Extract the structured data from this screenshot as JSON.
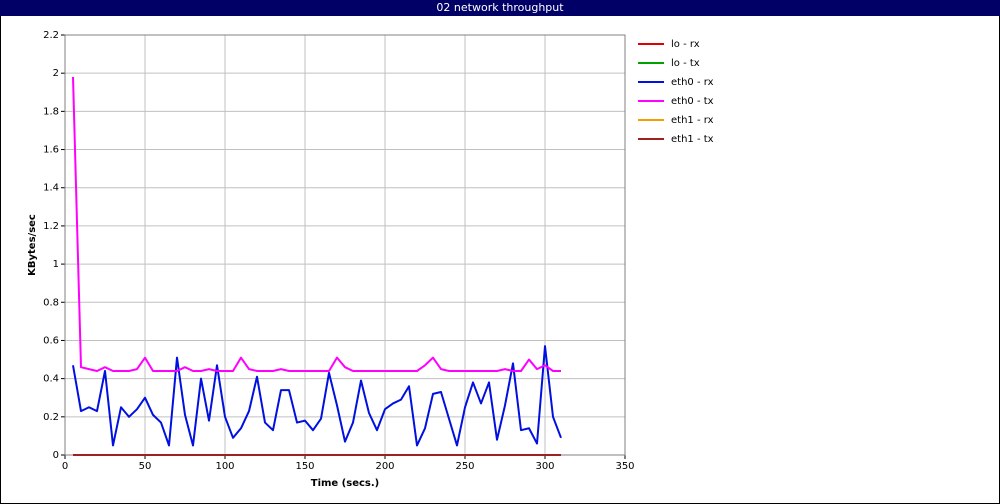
{
  "chart_data": {
    "type": "line",
    "title": "02 network throughput",
    "x_label": "Time (secs.)",
    "y_label": "KBytes/sec",
    "x": [
      5,
      10,
      15,
      20,
      25,
      30,
      35,
      40,
      45,
      50,
      55,
      60,
      65,
      70,
      75,
      80,
      85,
      90,
      95,
      100,
      105,
      110,
      115,
      120,
      125,
      130,
      135,
      140,
      145,
      150,
      155,
      160,
      165,
      170,
      175,
      180,
      185,
      190,
      195,
      200,
      205,
      210,
      215,
      220,
      225,
      230,
      235,
      240,
      245,
      250,
      255,
      260,
      265,
      270,
      275,
      280,
      285,
      290,
      295,
      300,
      305,
      310
    ],
    "series": [
      {
        "name": "lo - rx",
        "color": "#e00000",
        "values": [
          0,
          0,
          0,
          0,
          0,
          0,
          0,
          0,
          0,
          0,
          0,
          0,
          0,
          0,
          0,
          0,
          0,
          0,
          0,
          0,
          0,
          0,
          0,
          0,
          0,
          0,
          0,
          0,
          0,
          0,
          0,
          0,
          0,
          0,
          0,
          0,
          0,
          0,
          0,
          0,
          0,
          0,
          0,
          0,
          0,
          0,
          0,
          0,
          0,
          0,
          0,
          0,
          0,
          0,
          0,
          0,
          0,
          0,
          0,
          0,
          0,
          0
        ]
      },
      {
        "name": "lo - tx",
        "color": "#00a000",
        "values": [
          0,
          0,
          0,
          0,
          0,
          0,
          0,
          0,
          0,
          0,
          0,
          0,
          0,
          0,
          0,
          0,
          0,
          0,
          0,
          0,
          0,
          0,
          0,
          0,
          0,
          0,
          0,
          0,
          0,
          0,
          0,
          0,
          0,
          0,
          0,
          0,
          0,
          0,
          0,
          0,
          0,
          0,
          0,
          0,
          0,
          0,
          0,
          0,
          0,
          0,
          0,
          0,
          0,
          0,
          0,
          0,
          0,
          0,
          0,
          0,
          0,
          0
        ]
      },
      {
        "name": "eth0 - rx",
        "color": "#0010e0",
        "values": [
          0.47,
          0.23,
          0.25,
          0.23,
          0.44,
          0.05,
          0.25,
          0.2,
          0.24,
          0.3,
          0.21,
          0.17,
          0.05,
          0.51,
          0.21,
          0.05,
          0.4,
          0.18,
          0.47,
          0.2,
          0.09,
          0.14,
          0.23,
          0.41,
          0.17,
          0.13,
          0.34,
          0.34,
          0.17,
          0.18,
          0.13,
          0.19,
          0.43,
          0.26,
          0.07,
          0.17,
          0.39,
          0.22,
          0.13,
          0.24,
          0.27,
          0.29,
          0.36,
          0.05,
          0.14,
          0.32,
          0.33,
          0.19,
          0.05,
          0.25,
          0.38,
          0.27,
          0.38,
          0.08,
          0.26,
          0.48,
          0.13,
          0.14,
          0.06,
          0.57,
          0.2,
          0.09
        ]
      },
      {
        "name": "eth0 - tx",
        "color": "#ff00ff",
        "values": [
          1.98,
          0.46,
          0.45,
          0.44,
          0.46,
          0.44,
          0.44,
          0.44,
          0.45,
          0.51,
          0.44,
          0.44,
          0.44,
          0.44,
          0.46,
          0.44,
          0.44,
          0.45,
          0.44,
          0.44,
          0.44,
          0.51,
          0.45,
          0.44,
          0.44,
          0.44,
          0.45,
          0.44,
          0.44,
          0.44,
          0.44,
          0.44,
          0.44,
          0.51,
          0.46,
          0.44,
          0.44,
          0.44,
          0.44,
          0.44,
          0.44,
          0.44,
          0.44,
          0.44,
          0.47,
          0.51,
          0.45,
          0.44,
          0.44,
          0.44,
          0.44,
          0.44,
          0.44,
          0.44,
          0.45,
          0.44,
          0.44,
          0.5,
          0.45,
          0.47,
          0.44,
          0.44
        ]
      },
      {
        "name": "eth1 - rx",
        "color": "#f0a000",
        "values": [
          0,
          0,
          0,
          0,
          0,
          0,
          0,
          0,
          0,
          0,
          0,
          0,
          0,
          0,
          0,
          0,
          0,
          0,
          0,
          0,
          0,
          0,
          0,
          0,
          0,
          0,
          0,
          0,
          0,
          0,
          0,
          0,
          0,
          0,
          0,
          0,
          0,
          0,
          0,
          0,
          0,
          0,
          0,
          0,
          0,
          0,
          0,
          0,
          0,
          0,
          0,
          0,
          0,
          0,
          0,
          0,
          0,
          0,
          0,
          0,
          0,
          0
        ]
      },
      {
        "name": "eth1 - tx",
        "color": "#a02020",
        "values": [
          0,
          0,
          0,
          0,
          0,
          0,
          0,
          0,
          0,
          0,
          0,
          0,
          0,
          0,
          0,
          0,
          0,
          0,
          0,
          0,
          0,
          0,
          0,
          0,
          0,
          0,
          0,
          0,
          0,
          0,
          0,
          0,
          0,
          0,
          0,
          0,
          0,
          0,
          0,
          0,
          0,
          0,
          0,
          0,
          0,
          0,
          0,
          0,
          0,
          0,
          0,
          0,
          0,
          0,
          0,
          0,
          0,
          0,
          0,
          0,
          0,
          0
        ]
      }
    ],
    "xlim": [
      0,
      350
    ],
    "xticks": [
      0,
      50,
      100,
      150,
      200,
      250,
      300,
      350
    ],
    "ylim": [
      0,
      2.2
    ],
    "yticks": [
      0,
      0.2,
      0.4,
      0.6,
      0.8,
      1,
      1.2,
      1.4,
      1.6,
      1.8,
      2,
      2.2
    ],
    "grid": true,
    "legend": "right"
  }
}
